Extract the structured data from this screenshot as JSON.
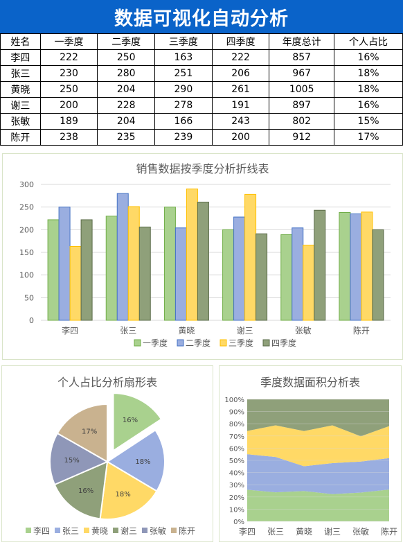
{
  "page": {
    "title": "数据可视化自动分析"
  },
  "table": {
    "headers": [
      "姓名",
      "一季度",
      "二季度",
      "三季度",
      "四季度",
      "年度总计",
      "个人占比"
    ],
    "rows": [
      [
        "李四",
        "222",
        "250",
        "163",
        "222",
        "857",
        "16%"
      ],
      [
        "张三",
        "230",
        "280",
        "251",
        "206",
        "967",
        "18%"
      ],
      [
        "黄晓",
        "250",
        "204",
        "290",
        "261",
        "1005",
        "18%"
      ],
      [
        "谢三",
        "200",
        "228",
        "278",
        "191",
        "897",
        "16%"
      ],
      [
        "张敏",
        "189",
        "204",
        "166",
        "243",
        "802",
        "15%"
      ],
      [
        "陈开",
        "238",
        "235",
        "239",
        "200",
        "912",
        "17%"
      ]
    ]
  },
  "chart_data": [
    {
      "type": "bar",
      "title": "销售数据按季度分析折线表",
      "categories": [
        "李四",
        "张三",
        "黄晓",
        "谢三",
        "张敏",
        "陈开"
      ],
      "series": [
        {
          "name": "一季度",
          "values": [
            222,
            230,
            250,
            200,
            189,
            238
          ],
          "color": "#a9d18e",
          "stroke": "#70ad47"
        },
        {
          "name": "二季度",
          "values": [
            250,
            280,
            204,
            228,
            204,
            235
          ],
          "color": "#9aaee0",
          "stroke": "#4472c4"
        },
        {
          "name": "三季度",
          "values": [
            163,
            251,
            290,
            278,
            166,
            239
          ],
          "color": "#ffd966",
          "stroke": "#ffc000"
        },
        {
          "name": "四季度",
          "values": [
            222,
            206,
            261,
            191,
            243,
            200
          ],
          "color": "#8fa07a",
          "stroke": "#5a6b48"
        }
      ],
      "ylim": [
        0,
        300
      ],
      "yticks": [
        "0",
        "50",
        "100",
        "150",
        "200",
        "250",
        "300"
      ],
      "legend": "bottom",
      "grid": true
    },
    {
      "type": "pie",
      "title": "个人占比分析扇形表",
      "labels": [
        "李四",
        "张三",
        "黄晓",
        "谢三",
        "张敏",
        "陈开"
      ],
      "values": [
        857,
        967,
        1005,
        897,
        802,
        912
      ],
      "data_labels": [
        "16%",
        "18%",
        "18%",
        "16%",
        "15%",
        "17%"
      ],
      "colors": [
        "#a9d18e",
        "#9aaee0",
        "#ffd966",
        "#8fa07a",
        "#8f97b8",
        "#c9b28f"
      ],
      "exploded": "李四",
      "legend": "bottom"
    },
    {
      "type": "area",
      "title": "季度数据面积分析表",
      "stacking": "percent",
      "categories": [
        "李四",
        "张三",
        "黄晓",
        "谢三",
        "张敏",
        "陈开"
      ],
      "series": [
        {
          "name": "一季度",
          "values": [
            222,
            230,
            250,
            200,
            189,
            238
          ],
          "color": "#a9d18e"
        },
        {
          "name": "二季度",
          "values": [
            250,
            280,
            204,
            228,
            204,
            235
          ],
          "color": "#9aaee0"
        },
        {
          "name": "三季度",
          "values": [
            163,
            251,
            290,
            278,
            166,
            239
          ],
          "color": "#ffd966"
        },
        {
          "name": "四季度",
          "values": [
            222,
            206,
            261,
            191,
            243,
            200
          ],
          "color": "#8fa07a"
        }
      ],
      "yticks": [
        "0%",
        "10%",
        "20%",
        "30%",
        "40%",
        "50%",
        "60%",
        "70%",
        "80%",
        "90%",
        "100%"
      ],
      "ylim": [
        0,
        100
      ]
    }
  ]
}
